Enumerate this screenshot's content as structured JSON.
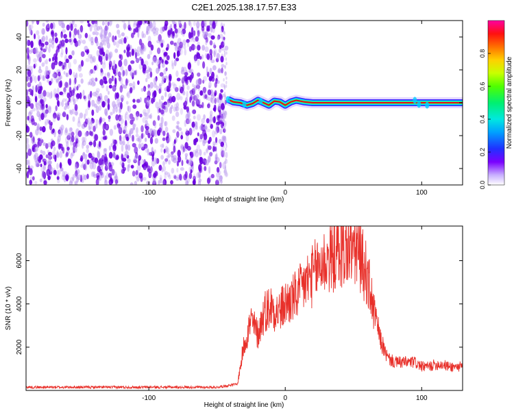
{
  "title": "C2E1.2025.138.17.57.E33",
  "chart_data": [
    {
      "type": "heatmap",
      "xlabel": "Height of straight line (km)",
      "ylabel": "Frequency (Hz)",
      "xlim": [
        -190,
        130
      ],
      "ylim": [
        -50,
        50
      ],
      "xticks": [
        -100,
        0,
        100
      ],
      "yticks": [
        -40,
        -20,
        0,
        20,
        40
      ],
      "colorbar": {
        "label": "Normalized spectral amplitude",
        "range": [
          0,
          1
        ],
        "ticks": [
          "0.0",
          "0.2",
          "0.4",
          "0.6",
          "0.8"
        ]
      },
      "colors": {
        "low": "#e6d2f5",
        "mid": "#6a00e0",
        "line_core": "#e8001c",
        "line_halo": "#00d0ff",
        "line_edge": "#3a20ff"
      },
      "noise_region_x": [
        -190,
        -43
      ],
      "signal_region_x": [
        -43,
        130
      ],
      "signal_frequency_hz": 0,
      "wiggle_points": [
        {
          "x": -42,
          "y": 2.0
        },
        {
          "x": -38,
          "y": 0.5
        },
        {
          "x": -33,
          "y": 0.0
        },
        {
          "x": -28,
          "y": -1.5
        },
        {
          "x": -24,
          "y": -0.5
        },
        {
          "x": -20,
          "y": 1.5
        },
        {
          "x": -16,
          "y": 0.0
        },
        {
          "x": -12,
          "y": -1.5
        },
        {
          "x": -8,
          "y": 1.0
        },
        {
          "x": -4,
          "y": 0.5
        },
        {
          "x": 0,
          "y": -1.5
        },
        {
          "x": 4,
          "y": 0.5
        },
        {
          "x": 8,
          "y": 1.5
        },
        {
          "x": 14,
          "y": 0.5
        },
        {
          "x": 20,
          "y": 0.0
        },
        {
          "x": 130,
          "y": 0.0
        }
      ]
    },
    {
      "type": "line",
      "xlabel": "Height of straight line (km)",
      "ylabel": "SNR (10 * v/v)",
      "xlim": [
        -190,
        130
      ],
      "ylim": [
        0,
        7600
      ],
      "xticks": [
        -100,
        0,
        100
      ],
      "yticks": [
        2000,
        4000,
        6000
      ],
      "color": "#e8302a",
      "x": [
        -190,
        -150,
        -100,
        -50,
        -35,
        -30,
        -25,
        -20,
        -15,
        -10,
        -5,
        0,
        5,
        10,
        15,
        20,
        25,
        30,
        35,
        40,
        45,
        50,
        55,
        60,
        65,
        70,
        75,
        80,
        85,
        90,
        95,
        100,
        105,
        110,
        115,
        120,
        125,
        130
      ],
      "y": [
        150,
        150,
        150,
        150,
        300,
        2200,
        3200,
        2600,
        3700,
        3900,
        3600,
        4000,
        4200,
        4500,
        5000,
        5300,
        5800,
        6000,
        6200,
        6400,
        6500,
        6600,
        6200,
        5300,
        3700,
        2300,
        1500,
        1300,
        1300,
        1300,
        1300,
        1100,
        1100,
        1200,
        1200,
        1100,
        1100,
        1100
      ]
    }
  ]
}
